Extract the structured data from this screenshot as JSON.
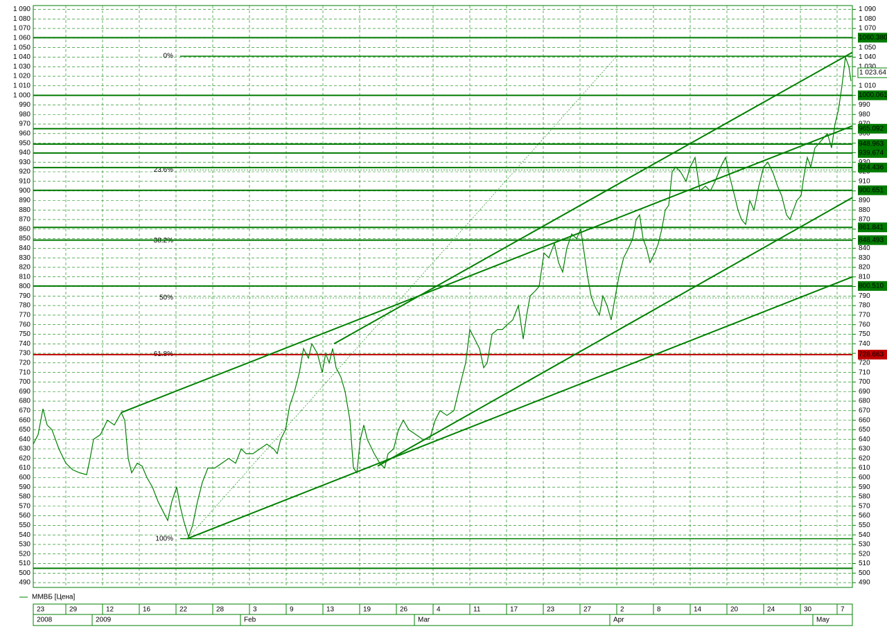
{
  "chart_data": {
    "type": "line",
    "series": [
      {
        "name": "ММВБ [Цена]",
        "color": "#008000",
        "values": [
          635,
          645,
          672,
          655,
          650,
          630,
          615,
          608,
          605,
          603,
          620,
          640,
          645,
          660,
          655,
          668,
          660,
          620,
          605,
          615,
          612,
          600,
          590,
          575,
          565,
          555,
          575,
          590,
          570,
          555,
          538,
          550,
          575,
          595,
          610,
          610,
          615,
          620,
          615,
          630,
          625,
          625,
          630,
          635,
          630,
          625,
          640,
          650,
          675,
          690,
          710,
          735,
          725,
          740,
          730,
          710,
          730,
          720,
          735,
          715,
          705,
          690,
          660,
          610,
          605,
          640,
          655,
          640,
          625,
          615,
          610,
          625,
          630,
          650,
          660,
          650,
          645,
          640,
          640,
          660,
          670,
          665,
          670,
          700,
          720,
          755,
          745,
          735,
          715,
          720,
          750,
          755,
          755,
          760,
          765,
          780,
          745,
          770,
          790,
          795,
          800,
          835,
          830,
          845,
          825,
          815,
          840,
          855,
          850,
          860,
          835,
          810,
          790,
          780,
          770,
          790,
          780,
          765,
          790,
          810,
          830,
          840,
          850,
          870,
          875,
          850,
          840,
          825,
          835,
          845,
          860,
          880,
          885,
          920,
          925,
          920,
          910,
          925,
          935,
          900,
          905,
          900,
          910,
          925,
          935,
          915,
          895,
          880,
          870,
          865,
          890,
          880,
          905,
          925,
          930,
          920,
          905,
          895,
          875,
          870,
          880,
          890,
          895,
          915,
          935,
          925,
          945,
          950,
          955,
          960,
          945,
          970,
          985,
          1010,
          1040,
          1030,
          1015
        ]
      }
    ],
    "x": [
      6,
      13,
      20,
      26,
      33,
      43,
      53,
      63,
      73,
      83,
      88,
      93,
      103,
      113,
      123,
      133,
      138,
      143,
      148,
      156,
      163,
      170,
      178,
      186,
      193,
      200,
      206,
      213,
      218,
      223,
      230,
      236,
      243,
      250,
      258,
      268,
      278,
      288,
      298,
      306,
      313,
      323,
      333,
      343,
      353,
      358,
      363,
      370,
      376,
      383,
      390,
      396,
      403,
      408,
      416,
      423,
      428,
      433,
      438,
      443,
      450,
      456,
      463,
      468,
      473,
      478,
      483,
      488,
      498,
      506,
      513,
      518,
      526,
      533,
      540,
      548,
      558,
      568,
      578,
      586,
      593,
      603,
      613,
      623,
      630,
      636,
      643,
      650,
      656,
      661,
      668,
      676,
      683,
      690,
      698,
      706,
      713,
      718,
      723,
      730,
      736,
      743,
      750,
      758,
      764,
      770,
      776,
      783,
      790,
      796,
      801,
      806,
      811,
      816,
      823,
      828,
      834,
      840,
      846,
      851,
      858,
      865,
      871,
      876,
      881,
      886,
      891,
      896,
      903,
      908,
      913,
      918,
      923,
      928,
      933,
      940,
      948,
      954,
      961,
      968,
      976,
      983,
      990,
      998,
      1005,
      1011,
      1018,
      1023,
      1028,
      1034,
      1040,
      1046,
      1053,
      1060,
      1066,
      1073,
      1080,
      1086,
      1093,
      1098,
      1103,
      1108,
      1114,
      1118,
      1123,
      1128,
      1134,
      1140,
      1146,
      1152,
      1158,
      1163,
      1168,
      1173,
      1178,
      1183,
      1186
    ],
    "xlim": [
      6,
      1188
    ],
    "xticks": [
      {
        "value": 0,
        "label": "23"
      },
      {
        "value": 53,
        "label": "29"
      },
      {
        "value": 106,
        "label": "12"
      },
      {
        "value": 159,
        "label": "16"
      },
      {
        "value": 212,
        "label": "22"
      },
      {
        "value": 265,
        "label": "28"
      },
      {
        "value": 318,
        "label": "3"
      },
      {
        "value": 371,
        "label": "9"
      },
      {
        "value": 424,
        "label": "13"
      },
      {
        "value": 477,
        "label": "19"
      },
      {
        "value": 530,
        "label": "26"
      },
      {
        "value": 583,
        "label": "4"
      },
      {
        "value": 636,
        "label": "11"
      },
      {
        "value": 689,
        "label": "17"
      },
      {
        "value": 742,
        "label": "23"
      },
      {
        "value": 795,
        "label": "27"
      },
      {
        "value": 848,
        "label": "2"
      },
      {
        "value": 901,
        "label": "8"
      },
      {
        "value": 954,
        "label": "14"
      },
      {
        "value": 1007,
        "label": "20"
      },
      {
        "value": 1060,
        "label": "24"
      },
      {
        "value": 1113,
        "label": "30"
      },
      {
        "value": 1166,
        "label": "7"
      }
    ],
    "month_ticks": [
      {
        "value": 6,
        "label": "2008"
      },
      {
        "value": 91,
        "label": "2009"
      },
      {
        "value": 305,
        "label": "Feb"
      },
      {
        "value": 556,
        "label": "Mar"
      },
      {
        "value": 838,
        "label": "Apr"
      },
      {
        "value": 1131,
        "label": "May"
      }
    ],
    "ylim": [
      485,
      1094
    ],
    "yticks": [
      490,
      500,
      510,
      520,
      530,
      540,
      550,
      560,
      570,
      580,
      590,
      600,
      610,
      620,
      630,
      640,
      650,
      660,
      670,
      680,
      690,
      700,
      710,
      720,
      730,
      740,
      750,
      760,
      770,
      780,
      790,
      800,
      810,
      820,
      830,
      840,
      850,
      860,
      870,
      880,
      890,
      900,
      910,
      920,
      930,
      940,
      950,
      960,
      970,
      980,
      990,
      {
        "value": 1000,
        "label": "1 000"
      },
      {
        "value": 1010,
        "label": "1 010"
      },
      {
        "value": 1020,
        "label": "1 020"
      },
      {
        "value": 1030,
        "label": "1 030"
      },
      {
        "value": 1040,
        "label": "1 040"
      },
      {
        "value": 1050,
        "label": "1 050"
      },
      {
        "value": 1060,
        "label": "1 060"
      },
      {
        "value": 1070,
        "label": "1 070"
      },
      {
        "value": 1080,
        "label": "1 080"
      },
      {
        "value": 1090,
        "label": "1 090"
      }
    ],
    "grid": true,
    "levels": [
      {
        "value": 1060.38,
        "label": "1060.380",
        "color": "#007a00"
      },
      {
        "value": 1000.061,
        "label": "1000.061",
        "color": "#007a00"
      },
      {
        "value": 965.092,
        "label": "965.092",
        "color": "#007a00"
      },
      {
        "value": 948.963,
        "label": "948.963",
        "color": "#007a00"
      },
      {
        "value": 939.674,
        "label": "939.674",
        "color": "#007a00"
      },
      {
        "value": 924.436,
        "label": "924.436",
        "color": "#007a00"
      },
      {
        "value": 900.651,
        "label": "900.651",
        "color": "#007a00"
      },
      {
        "value": 861.841,
        "label": "861.841",
        "color": "#007a00"
      },
      {
        "value": 848.493,
        "label": "848.493",
        "color": "#007a00"
      },
      {
        "value": 800.51,
        "label": "800.510",
        "color": "#007a00"
      },
      {
        "value": 728.663,
        "label": "728.663",
        "color": "#c00000"
      }
    ],
    "plain_levels": [
      505
    ],
    "last_price": {
      "value": 1023.64,
      "label": "1 023.64"
    },
    "fibonacci": {
      "start": 218,
      "levels": [
        {
          "value": 1041,
          "label": "0%"
        },
        {
          "value": 922,
          "label": "23.6%"
        },
        {
          "value": 848,
          "label": "38.2%"
        },
        {
          "value": 788,
          "label": "50%"
        },
        {
          "value": 729,
          "label": "61.8%"
        },
        {
          "value": 536,
          "label": "100%"
        }
      ]
    },
    "trendlines": [
      {
        "x": [
          133,
          1188
        ],
        "values": [
          668,
          968
        ]
      },
      {
        "x": [
          440,
          1188
        ],
        "values": [
          740,
          1045
        ]
      },
      {
        "x": [
          503,
          1188
        ],
        "values": [
          612,
          893
        ]
      },
      {
        "x": [
          228,
          1188
        ],
        "values": [
          536,
          810
        ]
      },
      {
        "x": [
          228,
          848
        ],
        "values": [
          536,
          1041
        ],
        "dashed": true
      }
    ]
  }
}
